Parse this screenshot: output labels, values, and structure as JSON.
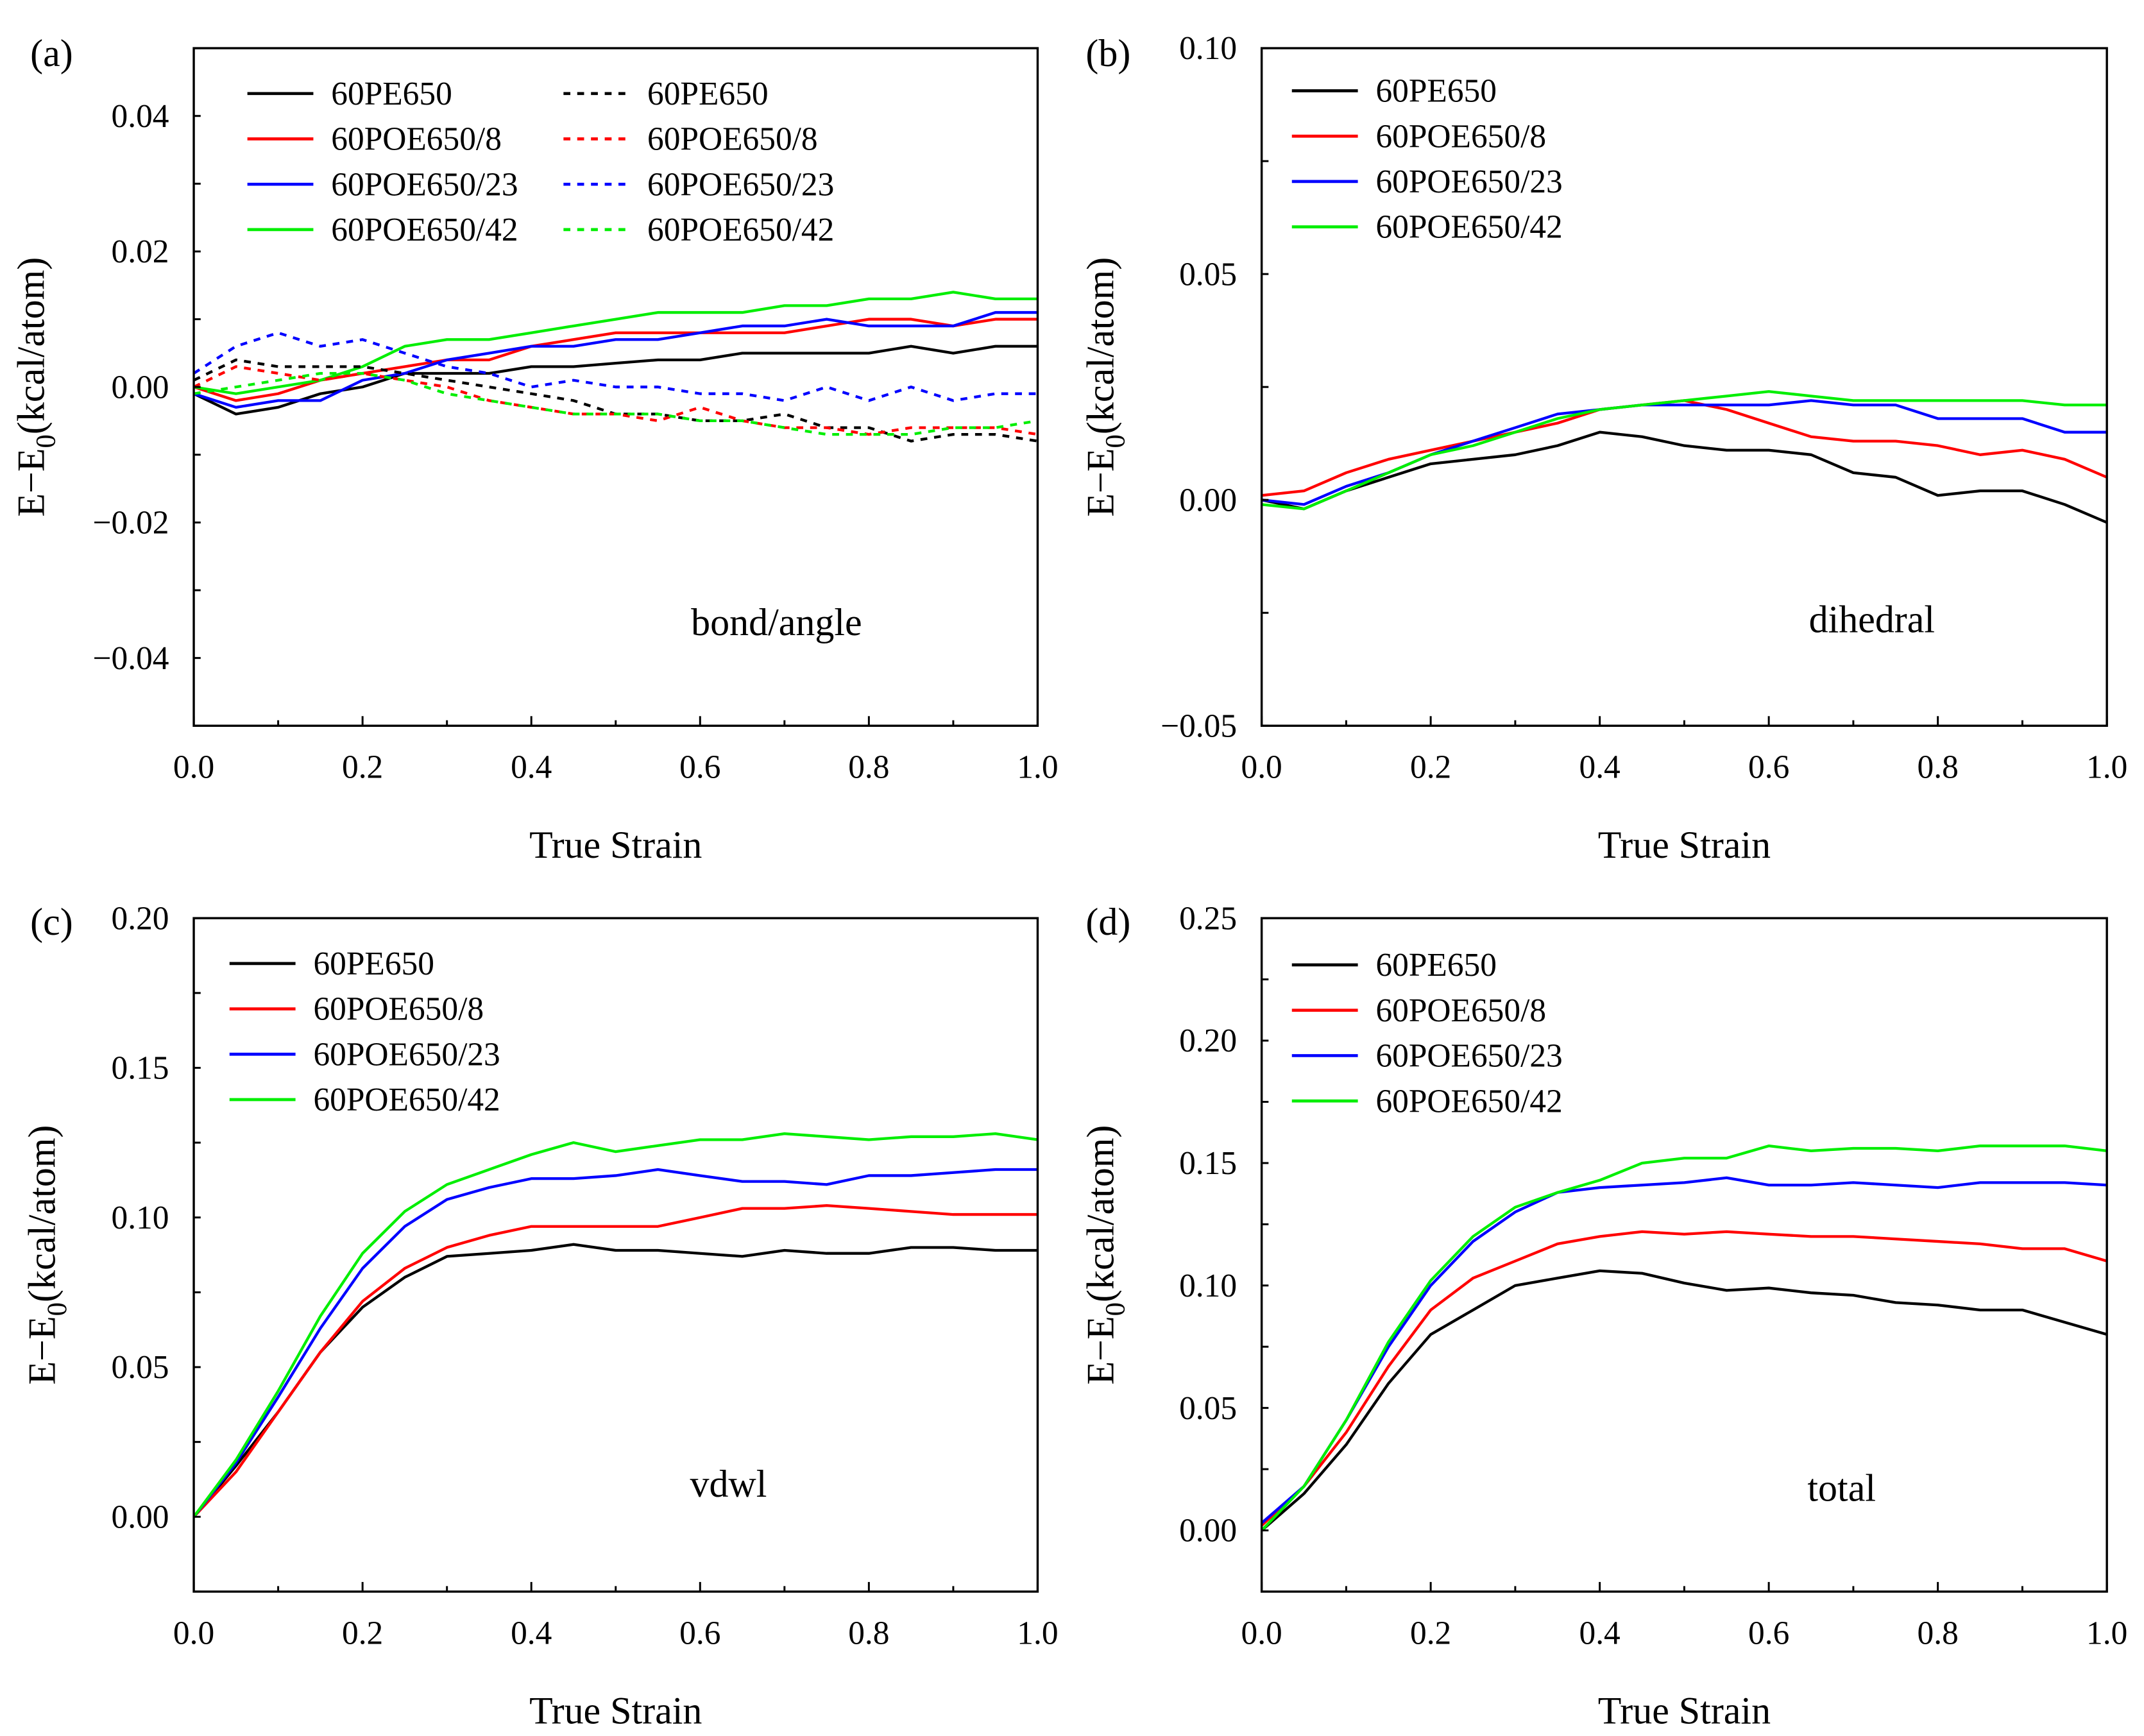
{
  "chart_data": [
    {
      "type": "line",
      "panel_label": "(a)",
      "annotation": "bond/angle",
      "xlabel": "True Strain",
      "ylabel": "E−E",
      "ylabel_sub": "0",
      "ylabel_tail": "(kcal/atom)",
      "xlim": [
        0,
        1.0
      ],
      "ylim": [
        -0.05,
        0.05
      ],
      "xticks": [
        0,
        0.2,
        0.4,
        0.6,
        0.8,
        1.0
      ],
      "xtick_labels": [
        "0.0",
        "0.2",
        "0.4",
        "0.6",
        "0.8",
        "1.0"
      ],
      "yticks": [
        0.04,
        0.02,
        0,
        -0.02,
        -0.04
      ],
      "ytick_labels": [
        "0.04",
        "0.02",
        "0.00",
        "−0.02",
        "−0.04"
      ],
      "yminor": 0.01,
      "legend_columns": 2,
      "x": [
        0,
        0.05,
        0.1,
        0.15,
        0.2,
        0.25,
        0.3,
        0.35,
        0.4,
        0.45,
        0.5,
        0.55,
        0.6,
        0.65,
        0.7,
        0.75,
        0.8,
        0.85,
        0.9,
        0.95,
        1.0
      ],
      "series": [
        {
          "name": "60PE650",
          "color": "#000000",
          "dash": false,
          "values": [
            -0.001,
            -0.004,
            -0.003,
            -0.001,
            0,
            0.002,
            0.002,
            0.002,
            0.003,
            0.003,
            0.0035,
            0.004,
            0.004,
            0.005,
            0.005,
            0.005,
            0.005,
            0.006,
            0.005,
            0.006,
            0.006
          ]
        },
        {
          "name": "60POE650/8",
          "color": "#ff0000",
          "dash": false,
          "values": [
            0,
            -0.002,
            -0.001,
            0.001,
            0.002,
            0.003,
            0.004,
            0.004,
            0.006,
            0.007,
            0.008,
            0.008,
            0.008,
            0.008,
            0.008,
            0.009,
            0.01,
            0.01,
            0.009,
            0.01,
            0.01
          ]
        },
        {
          "name": "60POE650/23",
          "color": "#0000ff",
          "dash": false,
          "values": [
            -0.001,
            -0.003,
            -0.002,
            -0.002,
            0.001,
            0.002,
            0.004,
            0.005,
            0.006,
            0.006,
            0.007,
            0.007,
            0.008,
            0.009,
            0.009,
            0.01,
            0.009,
            0.009,
            0.009,
            0.011,
            0.011
          ]
        },
        {
          "name": "60POE650/42",
          "color": "#00ee00",
          "dash": false,
          "values": [
            0,
            -0.001,
            0,
            0.001,
            0.003,
            0.006,
            0.007,
            0.007,
            0.008,
            0.009,
            0.01,
            0.011,
            0.011,
            0.011,
            0.012,
            0.012,
            0.013,
            0.013,
            0.014,
            0.013,
            0.013
          ]
        },
        {
          "name": "60PE650",
          "color": "#000000",
          "dash": true,
          "values": [
            0.001,
            0.004,
            0.003,
            0.003,
            0.003,
            0.002,
            0.001,
            0,
            -0.001,
            -0.002,
            -0.004,
            -0.004,
            -0.005,
            -0.005,
            -0.004,
            -0.006,
            -0.006,
            -0.008,
            -0.007,
            -0.007,
            -0.008
          ]
        },
        {
          "name": "60POE650/8",
          "color": "#ff0000",
          "dash": true,
          "values": [
            0,
            0.003,
            0.002,
            0.001,
            0.002,
            0.001,
            0,
            -0.002,
            -0.003,
            -0.004,
            -0.004,
            -0.005,
            -0.003,
            -0.005,
            -0.006,
            -0.006,
            -0.007,
            -0.006,
            -0.006,
            -0.006,
            -0.007
          ]
        },
        {
          "name": "60POE650/23",
          "color": "#0000ff",
          "dash": true,
          "values": [
            0.002,
            0.006,
            0.008,
            0.006,
            0.007,
            0.005,
            0.003,
            0.002,
            0,
            0.001,
            0,
            0,
            -0.001,
            -0.001,
            -0.002,
            0,
            -0.002,
            0,
            -0.002,
            -0.001,
            -0.001
          ]
        },
        {
          "name": "60POE650/42",
          "color": "#00ee00",
          "dash": true,
          "values": [
            -0.001,
            0,
            0.001,
            0.002,
            0.002,
            0.001,
            -0.001,
            -0.002,
            -0.003,
            -0.004,
            -0.004,
            -0.004,
            -0.005,
            -0.005,
            -0.006,
            -0.007,
            -0.007,
            -0.007,
            -0.006,
            -0.006,
            -0.005
          ]
        }
      ]
    },
    {
      "type": "line",
      "panel_label": "(b)",
      "annotation": "dihedral",
      "xlabel": "True Strain",
      "ylabel": "E−E",
      "ylabel_sub": "0",
      "ylabel_tail": "(kcal/atom)",
      "xlim": [
        0,
        1.0
      ],
      "ylim": [
        -0.05,
        0.1
      ],
      "xticks": [
        0,
        0.2,
        0.4,
        0.6,
        0.8,
        1.0
      ],
      "xtick_labels": [
        "0.0",
        "0.2",
        "0.4",
        "0.6",
        "0.8",
        "1.0"
      ],
      "yticks": [
        0.1,
        0.05,
        0,
        -0.05
      ],
      "ytick_labels": [
        "0.10",
        "0.05",
        "0.00",
        "−0.05"
      ],
      "yminor": 0.025,
      "legend_columns": 1,
      "x": [
        0,
        0.05,
        0.1,
        0.15,
        0.2,
        0.25,
        0.3,
        0.35,
        0.4,
        0.45,
        0.5,
        0.55,
        0.6,
        0.65,
        0.7,
        0.75,
        0.8,
        0.85,
        0.9,
        0.95,
        1.0
      ],
      "series": [
        {
          "name": "60PE650",
          "color": "#000000",
          "dash": false,
          "values": [
            0,
            -0.002,
            0.002,
            0.005,
            0.008,
            0.009,
            0.01,
            0.012,
            0.015,
            0.014,
            0.012,
            0.011,
            0.011,
            0.01,
            0.006,
            0.005,
            0.001,
            0.002,
            0.002,
            -0.001,
            -0.005
          ]
        },
        {
          "name": "60POE650/8",
          "color": "#ff0000",
          "dash": false,
          "values": [
            0.001,
            0.002,
            0.006,
            0.009,
            0.011,
            0.013,
            0.015,
            0.017,
            0.02,
            0.021,
            0.022,
            0.02,
            0.017,
            0.014,
            0.013,
            0.013,
            0.012,
            0.01,
            0.011,
            0.009,
            0.005
          ]
        },
        {
          "name": "60POE650/23",
          "color": "#0000ff",
          "dash": false,
          "values": [
            0,
            -0.001,
            0.003,
            0.006,
            0.01,
            0.013,
            0.016,
            0.019,
            0.02,
            0.021,
            0.021,
            0.021,
            0.021,
            0.022,
            0.021,
            0.021,
            0.018,
            0.018,
            0.018,
            0.015,
            0.015
          ]
        },
        {
          "name": "60POE650/42",
          "color": "#00ee00",
          "dash": false,
          "values": [
            -0.001,
            -0.002,
            0.002,
            0.006,
            0.01,
            0.012,
            0.015,
            0.018,
            0.02,
            0.021,
            0.022,
            0.023,
            0.024,
            0.023,
            0.022,
            0.022,
            0.022,
            0.022,
            0.022,
            0.021,
            0.021
          ]
        }
      ]
    },
    {
      "type": "line",
      "panel_label": "(c)",
      "annotation": "vdwl",
      "xlabel": "True Strain",
      "ylabel": "E−E",
      "ylabel_sub": "0",
      "ylabel_tail": "(kcal/atom)",
      "xlim": [
        0,
        1.0
      ],
      "ylim": [
        -0.025,
        0.2
      ],
      "xticks": [
        0,
        0.2,
        0.4,
        0.6,
        0.8,
        1.0
      ],
      "xtick_labels": [
        "0.0",
        "0.2",
        "0.4",
        "0.6",
        "0.8",
        "1.0"
      ],
      "yticks": [
        0.2,
        0.15,
        0.1,
        0.05,
        0
      ],
      "ytick_labels": [
        "0.20",
        "0.15",
        "0.10",
        "0.05",
        "0.00"
      ],
      "yminor": 0.025,
      "legend_columns": 1,
      "x": [
        0,
        0.05,
        0.1,
        0.15,
        0.2,
        0.25,
        0.3,
        0.35,
        0.4,
        0.45,
        0.5,
        0.55,
        0.6,
        0.65,
        0.7,
        0.75,
        0.8,
        0.85,
        0.9,
        0.95,
        1.0
      ],
      "series": [
        {
          "name": "60PE650",
          "color": "#000000",
          "dash": false,
          "values": [
            0,
            0.017,
            0.035,
            0.055,
            0.07,
            0.08,
            0.087,
            0.088,
            0.089,
            0.091,
            0.089,
            0.089,
            0.088,
            0.087,
            0.089,
            0.088,
            0.088,
            0.09,
            0.09,
            0.089,
            0.089
          ]
        },
        {
          "name": "60POE650/8",
          "color": "#ff0000",
          "dash": false,
          "values": [
            0,
            0.015,
            0.035,
            0.055,
            0.072,
            0.083,
            0.09,
            0.094,
            0.097,
            0.097,
            0.097,
            0.097,
            0.1,
            0.103,
            0.103,
            0.104,
            0.103,
            0.102,
            0.101,
            0.101,
            0.101
          ]
        },
        {
          "name": "60POE650/23",
          "color": "#0000ff",
          "dash": false,
          "values": [
            0,
            0.018,
            0.04,
            0.063,
            0.083,
            0.097,
            0.106,
            0.11,
            0.113,
            0.113,
            0.114,
            0.116,
            0.114,
            0.112,
            0.112,
            0.111,
            0.114,
            0.114,
            0.115,
            0.116,
            0.116
          ]
        },
        {
          "name": "60POE650/42",
          "color": "#00ee00",
          "dash": false,
          "values": [
            0,
            0.019,
            0.042,
            0.067,
            0.088,
            0.102,
            0.111,
            0.116,
            0.121,
            0.125,
            0.122,
            0.124,
            0.126,
            0.126,
            0.128,
            0.127,
            0.126,
            0.127,
            0.127,
            0.128,
            0.126
          ]
        }
      ]
    },
    {
      "type": "line",
      "panel_label": "(d)",
      "annotation": "total",
      "xlabel": "True Strain",
      "ylabel": "E−E",
      "ylabel_sub": "0",
      "ylabel_tail": "(kcal/atom)",
      "xlim": [
        0,
        1.0
      ],
      "ylim": [
        -0.025,
        0.25
      ],
      "xticks": [
        0,
        0.2,
        0.4,
        0.6,
        0.8,
        1.0
      ],
      "xtick_labels": [
        "0.0",
        "0.2",
        "0.4",
        "0.6",
        "0.8",
        "1.0"
      ],
      "yticks": [
        0.25,
        0.2,
        0.15,
        0.1,
        0.05,
        0
      ],
      "ytick_labels": [
        "0.25",
        "0.20",
        "0.15",
        "0.10",
        "0.05",
        "0.00"
      ],
      "yminor": 0.025,
      "legend_columns": 1,
      "x": [
        0,
        0.05,
        0.1,
        0.15,
        0.2,
        0.25,
        0.3,
        0.35,
        0.4,
        0.45,
        0.5,
        0.55,
        0.6,
        0.65,
        0.7,
        0.75,
        0.8,
        0.85,
        0.9,
        0.95,
        1.0
      ],
      "series": [
        {
          "name": "60PE650",
          "color": "#000000",
          "dash": false,
          "values": [
            0,
            0.015,
            0.035,
            0.06,
            0.08,
            0.09,
            0.1,
            0.103,
            0.106,
            0.105,
            0.101,
            0.098,
            0.099,
            0.097,
            0.096,
            0.093,
            0.092,
            0.09,
            0.09,
            0.085,
            0.08
          ]
        },
        {
          "name": "60POE650/8",
          "color": "#ff0000",
          "dash": false,
          "values": [
            0.002,
            0.018,
            0.04,
            0.067,
            0.09,
            0.103,
            0.11,
            0.117,
            0.12,
            0.122,
            0.121,
            0.122,
            0.121,
            0.12,
            0.12,
            0.119,
            0.118,
            0.117,
            0.115,
            0.115,
            0.11
          ]
        },
        {
          "name": "60POE650/23",
          "color": "#0000ff",
          "dash": false,
          "values": [
            0.003,
            0.018,
            0.045,
            0.075,
            0.1,
            0.118,
            0.13,
            0.138,
            0.14,
            0.141,
            0.142,
            0.144,
            0.141,
            0.141,
            0.142,
            0.141,
            0.14,
            0.142,
            0.142,
            0.142,
            0.141
          ]
        },
        {
          "name": "60POE650/42",
          "color": "#00ee00",
          "dash": false,
          "values": [
            0,
            0.018,
            0.045,
            0.077,
            0.102,
            0.12,
            0.132,
            0.138,
            0.143,
            0.15,
            0.152,
            0.152,
            0.157,
            0.155,
            0.156,
            0.156,
            0.155,
            0.157,
            0.157,
            0.157,
            0.155
          ]
        }
      ]
    }
  ]
}
